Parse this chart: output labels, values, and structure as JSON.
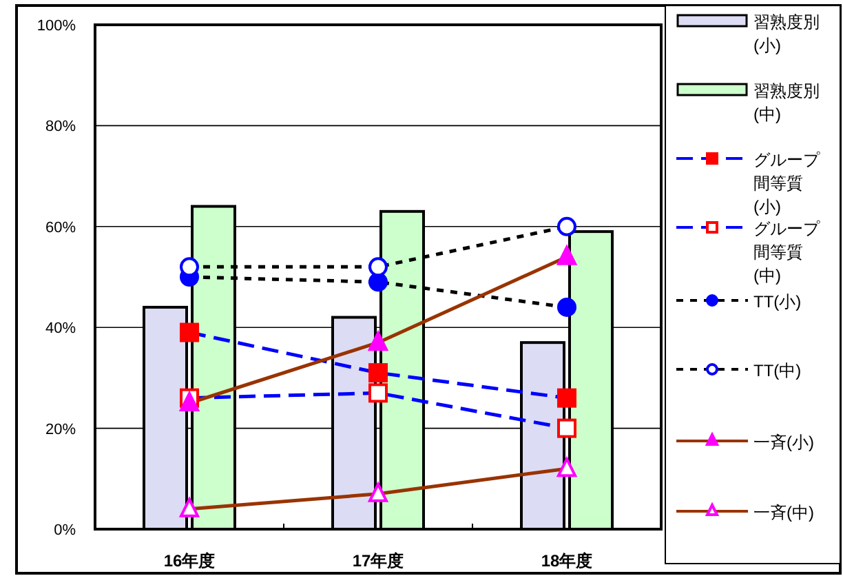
{
  "chart_data": {
    "type": "bar",
    "categories": [
      "16年度",
      "17年度",
      "18年度"
    ],
    "ylim": [
      0,
      100
    ],
    "yticks": [
      {
        "value": 0,
        "label": "0%"
      },
      {
        "value": 20,
        "label": "20%"
      },
      {
        "value": 40,
        "label": "40%"
      },
      {
        "value": 60,
        "label": "60%"
      },
      {
        "value": 80,
        "label": "80%"
      },
      {
        "value": 100,
        "label": "100%"
      }
    ],
    "grid": "y",
    "legend": "right",
    "series": [
      {
        "name": "習熟度別(小)",
        "color": "#dcdcf4",
        "values": [
          44,
          42,
          37
        ]
      },
      {
        "name": "習熟度別(中)",
        "color": "#ccffcc",
        "values": [
          64,
          63,
          59
        ]
      },
      {
        "name": "グループ間等質(小)",
        "type": "line",
        "color": "#0000ff",
        "marker": "square",
        "line_style": "dashed",
        "values": [
          39,
          31,
          26
        ]
      },
      {
        "name": "グループ間等質(中)",
        "type": "line",
        "color": "#0000ff",
        "marker": "square",
        "line_style": "dashed",
        "values": [
          26,
          27,
          20
        ]
      },
      {
        "name": "TT(小)",
        "type": "line",
        "color": "#000000",
        "marker": "circle",
        "line_style": "dotted",
        "values": [
          50,
          49,
          44
        ]
      },
      {
        "name": "TT(中)",
        "type": "line",
        "color": "#000000",
        "marker": "circle",
        "line_style": "dotted",
        "values": [
          52,
          52,
          60
        ]
      },
      {
        "name": "一斉(小)",
        "type": "line",
        "color": "#993300",
        "marker": "triangle",
        "line_style": "solid",
        "values": [
          25,
          37,
          54
        ]
      },
      {
        "name": "一斉(中)",
        "type": "line",
        "color": "#993300",
        "marker": "triangle",
        "line_style": "solid",
        "values": [
          4,
          7,
          12
        ]
      }
    ]
  }
}
